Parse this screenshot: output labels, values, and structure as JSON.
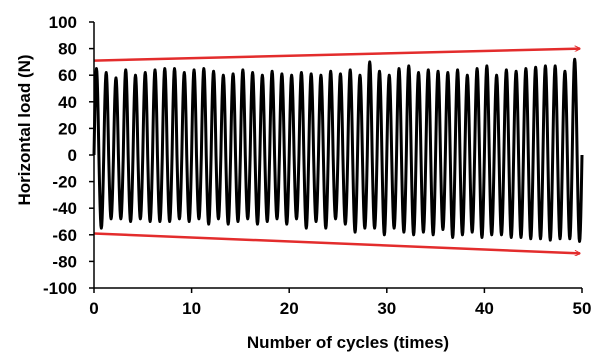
{
  "chart_data": {
    "type": "line",
    "xlabel": "Number of cycles (times)",
    "ylabel": "Horizontal load (N)",
    "xlim": [
      0,
      50
    ],
    "ylim": [
      -100,
      100
    ],
    "x_ticks": [
      0,
      10,
      20,
      30,
      40,
      50
    ],
    "y_ticks": [
      100,
      80,
      60,
      40,
      20,
      0,
      -20,
      -40,
      -60,
      -80,
      -100
    ],
    "grid": false,
    "legend": "none",
    "series": [
      {
        "color": "#000000",
        "cycles": 50,
        "peak_values": [
          65,
          62,
          58,
          64,
          60,
          62,
          64,
          65,
          65,
          62,
          64,
          65,
          63,
          60,
          61,
          64,
          62,
          60,
          63,
          61,
          60,
          62,
          61,
          60,
          63,
          61,
          64,
          60,
          70,
          63,
          60,
          65,
          67,
          62,
          64,
          63,
          62,
          64,
          60,
          65,
          67,
          60,
          64,
          63,
          65,
          66,
          67,
          67,
          63,
          72
        ],
        "trough_values": [
          -55,
          -48,
          -48,
          -50,
          -48,
          -50,
          -50,
          -50,
          -48,
          -50,
          -48,
          -52,
          -48,
          -52,
          -50,
          -48,
          -52,
          -50,
          -48,
          -52,
          -48,
          -55,
          -50,
          -55,
          -48,
          -52,
          -58,
          -55,
          -55,
          -60,
          -55,
          -58,
          -60,
          -58,
          -60,
          -56,
          -62,
          -60,
          -58,
          -62,
          -60,
          -60,
          -62,
          -62,
          -63,
          -63,
          -64,
          -63,
          -63,
          -65
        ]
      }
    ],
    "annotations": [
      {
        "type": "arrow",
        "color": "#e32c2c",
        "from": [
          0,
          71
        ],
        "to": [
          49.8,
          80
        ]
      },
      {
        "type": "arrow",
        "color": "#e32c2c",
        "from": [
          0,
          -59
        ],
        "to": [
          49.8,
          -74
        ]
      }
    ]
  }
}
